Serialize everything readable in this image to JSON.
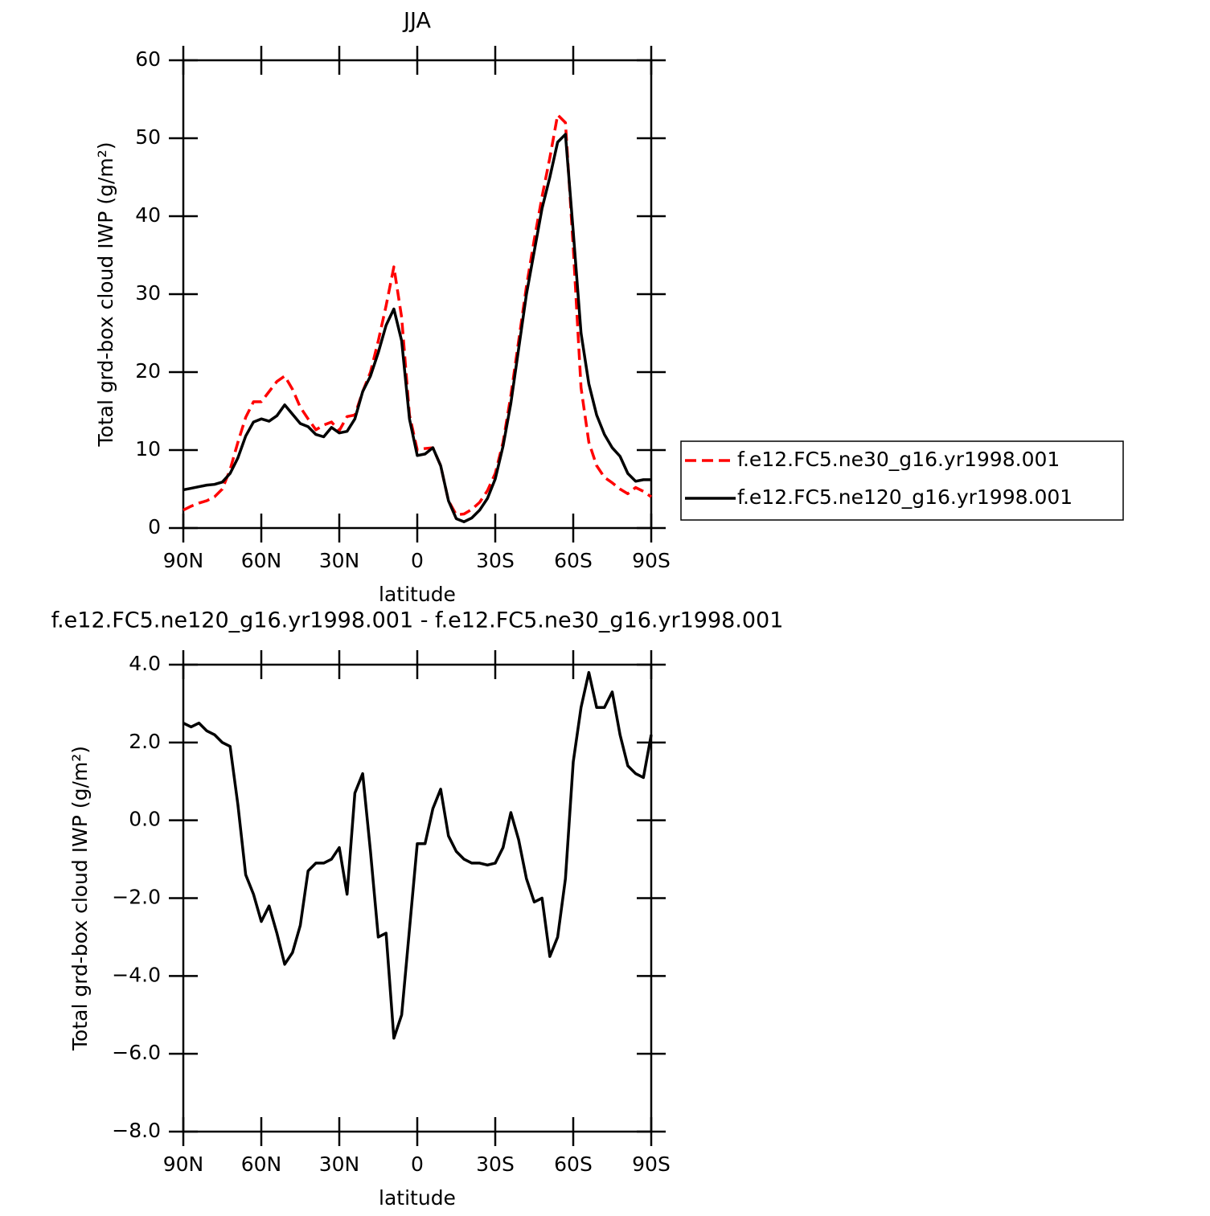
{
  "chart_data": [
    {
      "type": "line",
      "title": "JJA",
      "x_label": "latitude",
      "y_label": "Total grd-box cloud IWP (g/m²)",
      "x": [
        90,
        87,
        84,
        81,
        78,
        75,
        72,
        69,
        66,
        63,
        60,
        57,
        54,
        51,
        48,
        45,
        42,
        39,
        36,
        33,
        30,
        27,
        24,
        21,
        18,
        15,
        12,
        9,
        6,
        3,
        0,
        -3,
        -6,
        -9,
        -12,
        -15,
        -18,
        -21,
        -24,
        -27,
        -30,
        -33,
        -36,
        -39,
        -42,
        -45,
        -48,
        -51,
        -54,
        -57,
        -60,
        -63,
        -66,
        -69,
        -72,
        -75,
        -78,
        -81,
        -84,
        -87,
        -90
      ],
      "xlim": [
        90,
        -90
      ],
      "xticks": [
        {
          "value": 90,
          "label": "90N"
        },
        {
          "value": 60,
          "label": "60N"
        },
        {
          "value": 30,
          "label": "30N"
        },
        0,
        {
          "value": -30,
          "label": "30S"
        },
        {
          "value": -60,
          "label": "60S"
        },
        {
          "value": -90,
          "label": "90S"
        }
      ],
      "ylim": [
        0,
        60
      ],
      "yticks": [
        0,
        10,
        20,
        30,
        40,
        50,
        60
      ],
      "legend": "right",
      "series": [
        {
          "name": "f.e12.FC5.ne30_g16.yr1998.001",
          "color": "#ff0000",
          "line_style": "dashed",
          "values": [
            2.3,
            2.8,
            3.2,
            3.5,
            4.0,
            5.0,
            7.5,
            11,
            14.2,
            16.2,
            16.2,
            17.5,
            18.8,
            19.5,
            17.8,
            15.5,
            14,
            12.6,
            13.2,
            13.6,
            12.5,
            14.3,
            14.5,
            17.5,
            20,
            24,
            28.5,
            33.5,
            27,
            14.5,
            10,
            10.2,
            10.3,
            8,
            3.5,
            1.7,
            1.8,
            2.4,
            3.3,
            4.8,
            7.0,
            11,
            17,
            24,
            31,
            37,
            42.5,
            47.5,
            53,
            52,
            36,
            18,
            11,
            8,
            6.5,
            5.8,
            5.0,
            4.4,
            5.2,
            4.7,
            4.0
          ]
        },
        {
          "name": "f.e12.FC5.ne120_g16.yr1998.001",
          "color": "#000000",
          "line_style": "solid",
          "values": [
            4.9,
            5.1,
            5.3,
            5.5,
            5.6,
            5.9,
            7.0,
            9.0,
            11.8,
            13.6,
            14.0,
            13.7,
            14.4,
            15.8,
            14.6,
            13.4,
            13.0,
            12.0,
            11.7,
            12.9,
            12.2,
            12.4,
            14.0,
            17.5,
            19.5,
            22.5,
            26,
            28.1,
            24,
            14,
            9.3,
            9.5,
            10.3,
            8.0,
            3.5,
            1.2,
            0.8,
            1.3,
            2.3,
            3.8,
            6.3,
            10.5,
            16,
            23,
            30,
            35.5,
            41,
            45,
            49.5,
            50.5,
            38,
            25,
            18.5,
            14.5,
            12,
            10.3,
            9.2,
            7,
            6,
            6.2,
            6.2
          ]
        }
      ]
    },
    {
      "type": "line",
      "title": "f.e12.FC5.ne120_g16.yr1998.001 - f.e12.FC5.ne30_g16.yr1998.001",
      "x_label": "latitude",
      "y_label": "Total grd-box cloud IWP (g/m²)",
      "x": [
        90,
        87,
        84,
        81,
        78,
        75,
        72,
        69,
        66,
        63,
        60,
        57,
        54,
        51,
        48,
        45,
        42,
        39,
        36,
        33,
        30,
        27,
        24,
        21,
        18,
        15,
        12,
        9,
        6,
        3,
        0,
        -3,
        -6,
        -9,
        -12,
        -15,
        -18,
        -21,
        -24,
        -27,
        -30,
        -33,
        -36,
        -39,
        -42,
        -45,
        -48,
        -51,
        -54,
        -57,
        -60,
        -63,
        -66,
        -69,
        -72,
        -75,
        -78,
        -81,
        -84,
        -87,
        -90
      ],
      "xlim": [
        90,
        -90
      ],
      "xticks": [
        {
          "value": 90,
          "label": "90N"
        },
        {
          "value": 60,
          "label": "60N"
        },
        {
          "value": 30,
          "label": "30N"
        },
        0,
        {
          "value": -30,
          "label": "30S"
        },
        {
          "value": -60,
          "label": "60S"
        },
        {
          "value": -90,
          "label": "90S"
        }
      ],
      "ylim": [
        -8,
        4
      ],
      "yticks": [
        {
          "value": -8,
          "label": "−8.0"
        },
        {
          "value": -6,
          "label": "−6.0"
        },
        {
          "value": -4,
          "label": "−4.0"
        },
        {
          "value": -2,
          "label": "−2.0"
        },
        {
          "value": 0,
          "label": "0.0"
        },
        {
          "value": 2,
          "label": "2.0"
        },
        {
          "value": 4,
          "label": "4.0"
        }
      ],
      "series": [
        {
          "color": "#000000",
          "line_style": "solid",
          "values": [
            2.5,
            2.4,
            2.5,
            2.3,
            2.2,
            2.0,
            1.9,
            0.4,
            -1.4,
            -1.9,
            -2.6,
            -2.2,
            -2.9,
            -3.7,
            -3.4,
            -2.7,
            -1.3,
            -1.1,
            -1.1,
            -1.0,
            -0.7,
            -1.9,
            0.7,
            1.2,
            -0.8,
            -3.0,
            -2.9,
            -5.6,
            -5.0,
            -2.8,
            -0.6,
            -0.6,
            0.3,
            0.8,
            -0.4,
            -0.8,
            -1.0,
            -1.1,
            -1.1,
            -1.15,
            -1.1,
            -0.7,
            0.2,
            -0.5,
            -1.5,
            -2.1,
            -2.0,
            -3.5,
            -3.0,
            -1.5,
            1.5,
            2.9,
            3.8,
            2.9,
            2.9,
            3.3,
            2.2,
            1.4,
            1.2,
            1.1,
            2.2
          ]
        }
      ]
    }
  ]
}
